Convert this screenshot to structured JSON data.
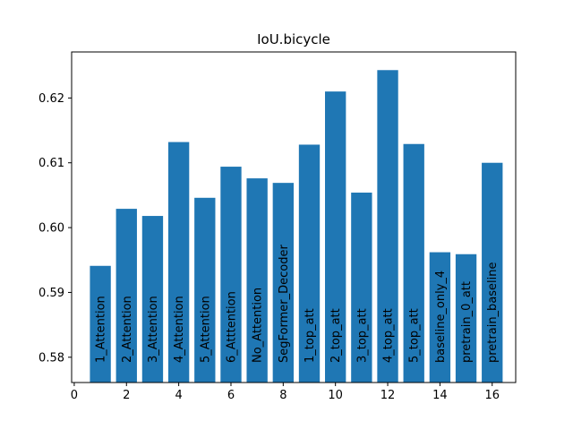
{
  "chart_data": {
    "type": "bar",
    "title": "IoU.bicycle",
    "xlabel": "",
    "ylabel": "",
    "x": [
      1,
      2,
      3,
      4,
      5,
      6,
      7,
      8,
      9,
      10,
      11,
      12,
      13,
      14,
      15,
      16
    ],
    "categories": [
      "1_Attention",
      "2_Attention",
      "3_Attention",
      "4_Attention",
      "5_Attention",
      "6_Atttention",
      "No_Attention",
      "SegFormer_Decoder",
      "1_top_att",
      "2_top_att",
      "3_top_att",
      "4_top_att",
      "5_top_att",
      "baseline_only_4",
      "pretrain_0_att",
      "pretrain_baseline"
    ],
    "values": [
      0.5941,
      0.6029,
      0.6018,
      0.6132,
      0.6046,
      0.6094,
      0.6076,
      0.6069,
      0.6128,
      0.621,
      0.6054,
      0.6243,
      0.6129,
      0.5962,
      0.5959,
      0.61
    ],
    "xlim": [
      -0.1,
      16.9
    ],
    "ylim": [
      0.5761,
      0.6271
    ],
    "xticks": [
      0,
      2,
      4,
      6,
      8,
      10,
      12,
      14,
      16
    ],
    "yticks": [
      0.58,
      0.59,
      0.6,
      0.61,
      0.62
    ],
    "ytick_labels": [
      "0.58",
      "0.59",
      "0.60",
      "0.61",
      "0.62"
    ],
    "bar_width": 0.8,
    "bar_color": "#1f77b4",
    "grid": false,
    "legend": "none"
  }
}
